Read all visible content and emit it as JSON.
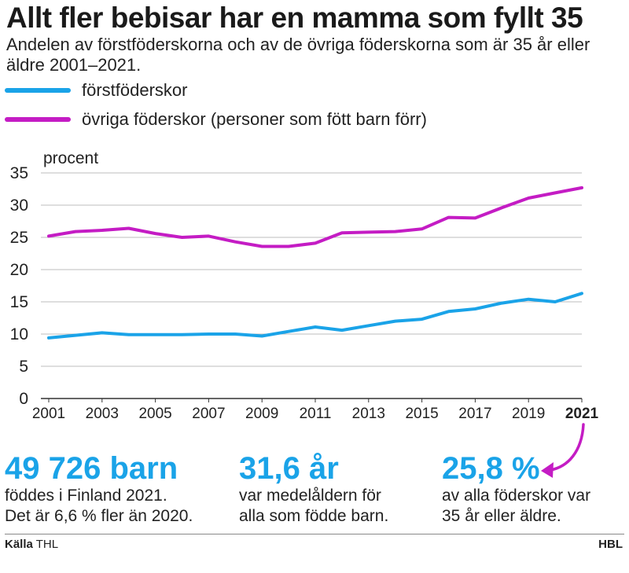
{
  "header": {
    "title": "Allt fler bebisar har en mamma som fyllt 35",
    "subtitle": "Andelen av förstföderskorna och av de övriga föderskorna som är 35 år eller äldre 2001–2021."
  },
  "legend": [
    {
      "label": "förstföderskor",
      "color": "#1aa3e8"
    },
    {
      "label": "övriga föderskor (personer som fött barn förr)",
      "color": "#c41cc4"
    }
  ],
  "chart_data": {
    "type": "line",
    "ylabel": "procent",
    "ylim": [
      0,
      35
    ],
    "yticks": [
      0,
      5,
      10,
      15,
      20,
      25,
      30,
      35
    ],
    "xlim": [
      2001,
      2021
    ],
    "xticks": [
      "2001",
      "2003",
      "2005",
      "2007",
      "2009",
      "2011",
      "2013",
      "2015",
      "2017",
      "2019",
      "2021"
    ],
    "highlight_tick": "2021",
    "grid": true,
    "x": [
      2001,
      2002,
      2003,
      2004,
      2005,
      2006,
      2007,
      2008,
      2009,
      2010,
      2011,
      2012,
      2013,
      2014,
      2015,
      2016,
      2017,
      2018,
      2019,
      2020,
      2021
    ],
    "series": [
      {
        "name": "förstföderskor",
        "color": "#1aa3e8",
        "values": [
          9.4,
          9.8,
          10.2,
          9.9,
          9.9,
          9.9,
          10.0,
          10.0,
          9.7,
          10.4,
          11.1,
          10.6,
          11.3,
          12.0,
          12.3,
          13.5,
          13.9,
          14.8,
          15.4,
          15.0,
          16.3
        ]
      },
      {
        "name": "övriga föderskor (personer som fött barn förr)",
        "color": "#c41cc4",
        "values": [
          25.2,
          25.9,
          26.1,
          26.4,
          25.6,
          25.0,
          25.2,
          24.3,
          23.6,
          23.6,
          24.1,
          25.7,
          25.8,
          25.9,
          26.3,
          28.1,
          28.0,
          29.6,
          31.1,
          31.9,
          32.7
        ]
      }
    ]
  },
  "stats": [
    {
      "big": "49 726 barn",
      "line1": "föddes i Finland 2021.",
      "line2": "Det är 6,6 % fler än 2020."
    },
    {
      "big": "31,6 år",
      "line1": "var medelåldern för",
      "line2": "alla som födde barn."
    },
    {
      "big": "25,8 %",
      "line1": "av alla föderskor var",
      "line2": "35 år eller äldre."
    }
  ],
  "footer": {
    "source_label": "Källa",
    "source_value": "THL",
    "brand": "HBL"
  },
  "colors": {
    "accent_blue": "#1aa3e8",
    "accent_magenta": "#c41cc4"
  }
}
